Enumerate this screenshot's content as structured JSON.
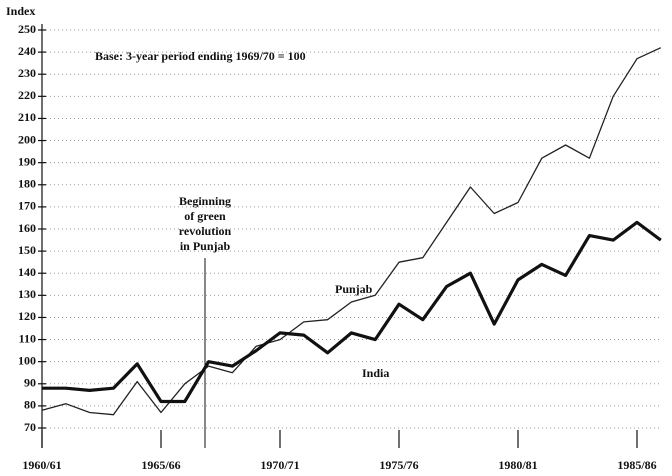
{
  "chart_data": {
    "type": "line",
    "y_label": "Index",
    "annotation": "Base: 3-year period ending 1969/70 = 100",
    "event_note": [
      "Beginning",
      "of green",
      "revolution",
      "in Punjab"
    ],
    "categories": [
      "1960/61",
      null,
      null,
      null,
      null,
      "1965/66",
      null,
      null,
      null,
      null,
      "1970/71",
      null,
      null,
      null,
      null,
      "1975/76",
      null,
      null,
      null,
      null,
      "1980/81",
      null,
      null,
      null,
      null,
      "1985/86",
      null
    ],
    "series": [
      {
        "name": "Punjab",
        "color": "#222",
        "values": [
          78,
          81,
          77,
          76,
          91,
          77,
          90,
          98,
          95,
          107,
          110,
          118,
          119,
          127,
          130,
          145,
          147,
          163,
          179,
          167,
          172,
          192,
          198,
          192,
          220,
          237,
          242
        ]
      },
      {
        "name": "India",
        "color": "#111",
        "values": [
          88,
          88,
          87,
          88,
          99,
          82,
          82,
          100,
          98,
          105,
          113,
          112,
          104,
          113,
          110,
          126,
          119,
          134,
          140,
          117,
          137,
          144,
          139,
          157,
          155,
          163,
          155
        ]
      }
    ],
    "ylim": [
      70,
      250
    ],
    "yticks": [
      70,
      80,
      90,
      100,
      110,
      120,
      130,
      140,
      150,
      160,
      170,
      180,
      190,
      200,
      210,
      220,
      230,
      240,
      250
    ],
    "grid": true
  }
}
